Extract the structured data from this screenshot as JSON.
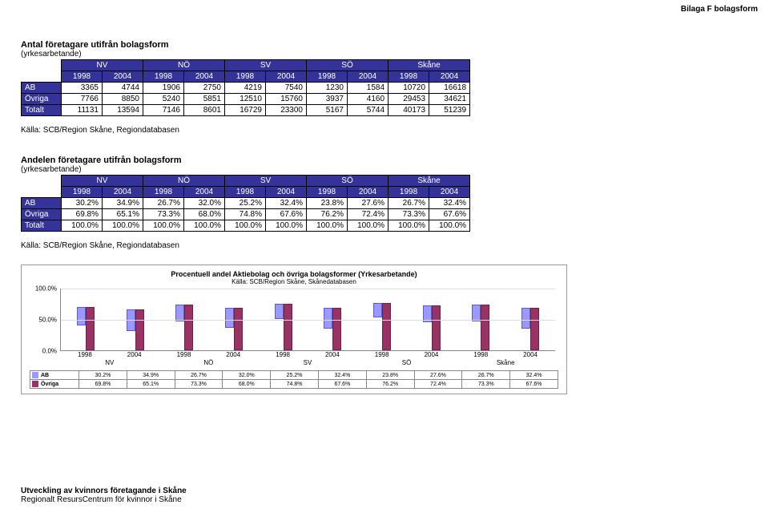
{
  "page_header": "Bilaga F bolagsform",
  "footer": {
    "line1": "Utveckling av kvinnors företagande i Skåne",
    "line2": "Regionalt ResursCentrum för kvinnor i Skåne"
  },
  "colors": {
    "table_header_bg": "#333399",
    "table_header_fg": "#ffffff",
    "bar_ab": "#9999ff",
    "bar_ov": "#993366"
  },
  "region_groups": [
    "NV",
    "NÖ",
    "SV",
    "SÖ",
    "Skåne"
  ],
  "years": [
    "1998",
    "2004"
  ],
  "table_abs": {
    "title": "Antal företagare utifrån bolagsform",
    "subtitle": "(yrkesarbetande)",
    "row_labels": [
      "AB",
      "Övriga",
      "Totalt"
    ],
    "rows": [
      [
        3365,
        4744,
        1906,
        2750,
        4219,
        7540,
        1230,
        1584,
        10720,
        16618
      ],
      [
        7766,
        8850,
        5240,
        5851,
        12510,
        15760,
        3937,
        4160,
        29453,
        34621
      ],
      [
        11131,
        13594,
        7146,
        8601,
        16729,
        23300,
        5167,
        5744,
        40173,
        51239
      ]
    ],
    "source": "Källa: SCB/Region Skåne, Regiondatabasen"
  },
  "table_pct": {
    "title": "Andelen företagare utifrån bolagsform",
    "subtitle": "(yrkesarbetande)",
    "row_labels": [
      "AB",
      "Övriga",
      "Totalt"
    ],
    "rows": [
      [
        "30.2%",
        "34.9%",
        "26.7%",
        "32.0%",
        "25.2%",
        "32.4%",
        "23.8%",
        "27.6%",
        "26.7%",
        "32.4%"
      ],
      [
        "69.8%",
        "65.1%",
        "73.3%",
        "68.0%",
        "74.8%",
        "67.6%",
        "76.2%",
        "72.4%",
        "73.3%",
        "67.6%"
      ],
      [
        "100.0%",
        "100.0%",
        "100.0%",
        "100.0%",
        "100.0%",
        "100.0%",
        "100.0%",
        "100.0%",
        "100.0%",
        "100.0%"
      ]
    ],
    "source": "Källa: SCB/Region Skåne, Regiondatabasen"
  },
  "chart": {
    "title": "Procentuell andel Aktiebolag och övriga bolagsformer (Yrkesarbetande)",
    "subtitle": "Källa: SCB/Region Skåne, Skånedatabasen",
    "y_ticks": [
      0,
      50,
      100
    ],
    "y_labels": [
      "0.0%",
      "50.0%",
      "100.0%"
    ],
    "y_max": 100,
    "series": [
      {
        "key": "AB",
        "label": "AB",
        "color": "#9999ff",
        "values": [
          30.2,
          34.9,
          26.7,
          32.0,
          25.2,
          32.4,
          23.8,
          27.6,
          26.7,
          32.4
        ],
        "labels": [
          "30.2%",
          "34.9%",
          "26.7%",
          "32.0%",
          "25.2%",
          "32.4%",
          "23.8%",
          "27.6%",
          "26.7%",
          "32.4%"
        ]
      },
      {
        "key": "Övriga",
        "label": "Övriga",
        "color": "#993366",
        "values": [
          69.8,
          65.1,
          73.3,
          68.0,
          74.8,
          67.6,
          76.2,
          72.4,
          73.3,
          67.6
        ],
        "labels": [
          "69.8%",
          "65.1%",
          "73.3%",
          "68.0%",
          "74.8%",
          "67.6%",
          "76.2%",
          "72.4%",
          "73.3%",
          "67.6%"
        ]
      }
    ],
    "x_year_labels": [
      "1998",
      "2004",
      "1998",
      "2004",
      "1998",
      "2004",
      "1998",
      "2004",
      "1998",
      "2004"
    ],
    "x_group_labels": [
      "NV",
      "NÖ",
      "SV",
      "SÖ",
      "Skåne"
    ]
  }
}
